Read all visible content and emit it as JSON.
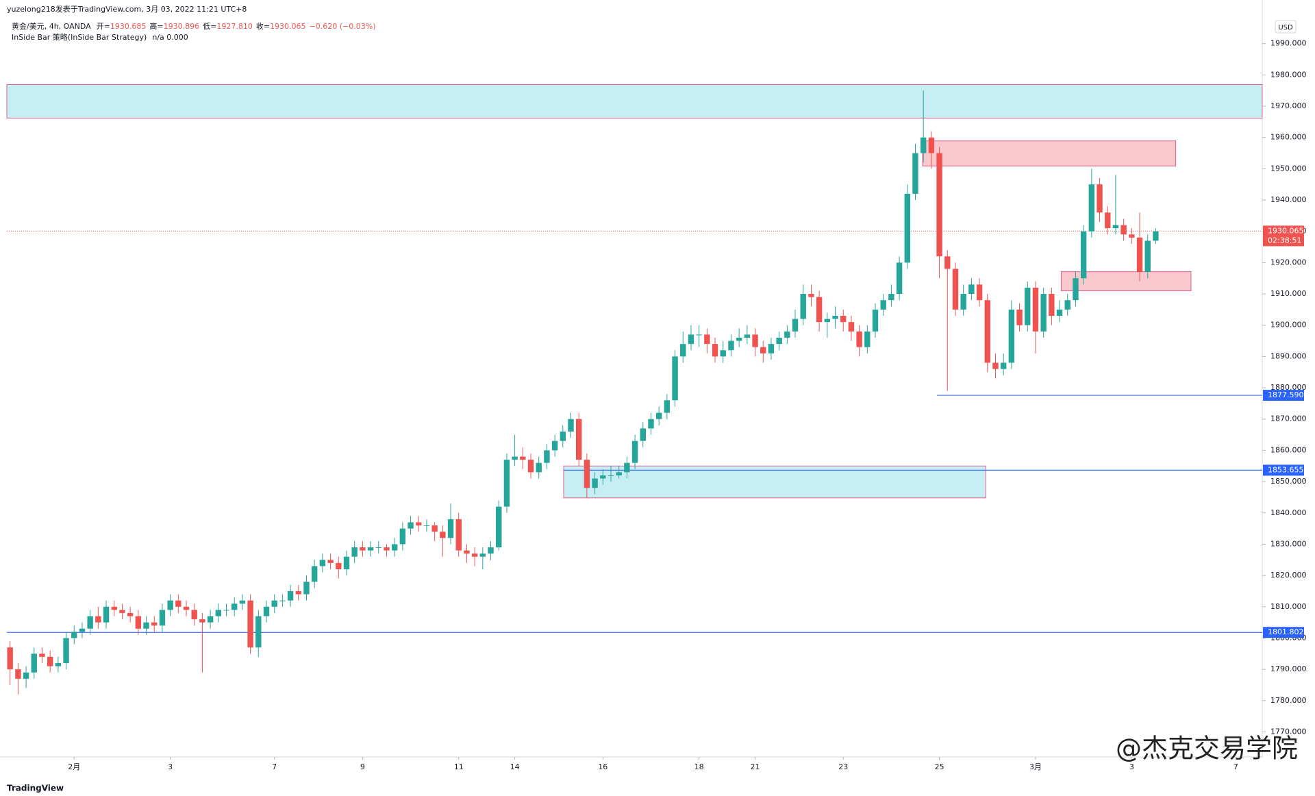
{
  "header": {
    "source": "yuzelong218发表于TradingView.com, 3月 03, 2022 11:21 UTC+8",
    "symbol": "黄金/美元, 4h, OANDA",
    "ohlc": [
      {
        "label": "开=",
        "value": "1930.685"
      },
      {
        "label": "高=",
        "value": "1930.896"
      },
      {
        "label": "低=",
        "value": "1927.810"
      },
      {
        "label": "收=",
        "value": "1930.065"
      }
    ],
    "change": "−0.620 (−0.03%)",
    "indicator": "InSide Bar 策略(InSide Bar Strategy)",
    "indicator_values": "n/a  0.000",
    "brand": "TradingView",
    "watermark": "@杰克交易学院"
  },
  "chart_data": {
    "type": "candlestick",
    "currency": "USD",
    "up_color": "#26a69a",
    "down_color": "#ef5350",
    "xlim": [
      -0.4,
      156.3
    ],
    "xticks": [
      {
        "value": 8,
        "label": "2月"
      },
      {
        "value": 20,
        "label": "3"
      },
      {
        "value": 33,
        "label": "7"
      },
      {
        "value": 44,
        "label": "9"
      },
      {
        "value": 56,
        "label": "11"
      },
      {
        "value": 63,
        "label": "14"
      },
      {
        "value": 74,
        "label": "16"
      },
      {
        "value": 86,
        "label": "18"
      },
      {
        "value": 93,
        "label": "21"
      },
      {
        "value": 104,
        "label": "23"
      },
      {
        "value": 116,
        "label": "25"
      },
      {
        "value": 128,
        "label": "3月"
      },
      {
        "value": 140,
        "label": "3"
      },
      {
        "value": 153,
        "label": "7"
      }
    ],
    "ylim": [
      1762,
      2000
    ],
    "yticks": [
      {
        "value": 1770,
        "label": "1770.000"
      },
      {
        "value": 1780,
        "label": "1780.000"
      },
      {
        "value": 1790,
        "label": "1790.000"
      },
      {
        "value": 1800,
        "label": "1800.000"
      },
      {
        "value": 1810,
        "label": "1810.000"
      },
      {
        "value": 1820,
        "label": "1820.000"
      },
      {
        "value": 1830,
        "label": "1830.000"
      },
      {
        "value": 1840,
        "label": "1840.000"
      },
      {
        "value": 1850,
        "label": "1850.000"
      },
      {
        "value": 1860,
        "label": "1860.000"
      },
      {
        "value": 1870,
        "label": "1870.000"
      },
      {
        "value": 1880,
        "label": "1880.000"
      },
      {
        "value": 1890,
        "label": "1890.000"
      },
      {
        "value": 1900,
        "label": "1900.000"
      },
      {
        "value": 1910,
        "label": "1910.000"
      },
      {
        "value": 1920,
        "label": "1920.000"
      },
      {
        "value": 1930,
        "label": "1930.000"
      },
      {
        "value": 1940,
        "label": "1940.000"
      },
      {
        "value": 1950,
        "label": "1950.000"
      },
      {
        "value": 1960,
        "label": "1960.000"
      },
      {
        "value": 1970,
        "label": "1970.000"
      },
      {
        "value": 1980,
        "label": "1980.000"
      },
      {
        "value": 1990,
        "label": "1990.000"
      }
    ],
    "zones": [
      {
        "low": 1966.2,
        "high": 1976.9,
        "color": "#c8eef5"
      },
      {
        "low": 1950.9,
        "high": 1958.9,
        "from": 113.9,
        "to": 145.5,
        "color": "#f8c8cc"
      },
      {
        "low": 1911,
        "high": 1917.1,
        "from": 131.2,
        "to": 147.4,
        "color": "#f8c8cc"
      },
      {
        "low": 1844.8,
        "high": 1855,
        "from": 69.1,
        "to": 121.8,
        "color": "#c8eef5"
      }
    ],
    "levels": [
      {
        "value": 1877.59,
        "label": "1877.590",
        "from": 115.7
      },
      {
        "value": 1853.655,
        "label": "1853.655",
        "from": 69.1
      },
      {
        "value": 1801.802,
        "label": "1801.802"
      }
    ],
    "last_price": {
      "value": 1930.065,
      "label": "1930.065",
      "countdown": "02:38:51"
    },
    "ohlc": [
      [
        1797,
        1799,
        1785,
        1790
      ],
      [
        1790,
        1792,
        1782,
        1787
      ],
      [
        1787,
        1791,
        1784,
        1789
      ],
      [
        1789,
        1797,
        1787,
        1795
      ],
      [
        1795,
        1797,
        1792,
        1794
      ],
      [
        1794,
        1796,
        1789,
        1791
      ],
      [
        1791,
        1794,
        1789,
        1792
      ],
      [
        1792,
        1802,
        1790,
        1800
      ],
      [
        1800,
        1804,
        1798,
        1802
      ],
      [
        1802,
        1805,
        1800,
        1803
      ],
      [
        1803,
        1809,
        1801,
        1807
      ],
      [
        1807,
        1810,
        1803,
        1805
      ],
      [
        1805,
        1812,
        1803,
        1810
      ],
      [
        1810,
        1812,
        1807,
        1809
      ],
      [
        1809,
        1811,
        1806,
        1808
      ],
      [
        1808,
        1810,
        1805,
        1807
      ],
      [
        1807,
        1809,
        1801,
        1803
      ],
      [
        1803,
        1807,
        1801,
        1805
      ],
      [
        1805,
        1807,
        1802,
        1804
      ],
      [
        1804,
        1811,
        1802,
        1809
      ],
      [
        1809,
        1814,
        1807,
        1812
      ],
      [
        1812,
        1814,
        1808,
        1810
      ],
      [
        1810,
        1812,
        1807,
        1809
      ],
      [
        1809,
        1811,
        1804,
        1806
      ],
      [
        1806,
        1808,
        1789,
        1805
      ],
      [
        1805,
        1809,
        1803,
        1807
      ],
      [
        1807,
        1811,
        1805,
        1809
      ],
      [
        1809,
        1811,
        1807,
        1809
      ],
      [
        1809,
        1813,
        1807,
        1811
      ],
      [
        1811,
        1814,
        1809,
        1812
      ],
      [
        1812,
        1814,
        1795,
        1797
      ],
      [
        1797,
        1809,
        1794,
        1807
      ],
      [
        1807,
        1812,
        1805,
        1810
      ],
      [
        1810,
        1814,
        1808,
        1812
      ],
      [
        1812,
        1814,
        1810,
        1812
      ],
      [
        1812,
        1817,
        1810,
        1815
      ],
      [
        1815,
        1817,
        1812,
        1814
      ],
      [
        1814,
        1820,
        1812,
        1818
      ],
      [
        1818,
        1825,
        1816,
        1823
      ],
      [
        1823,
        1827,
        1821,
        1825
      ],
      [
        1825,
        1827,
        1822,
        1824
      ],
      [
        1824,
        1826,
        1819,
        1822
      ],
      [
        1822,
        1828,
        1820,
        1826
      ],
      [
        1826,
        1831,
        1824,
        1829
      ],
      [
        1829,
        1831,
        1826,
        1828
      ],
      [
        1828,
        1831,
        1826,
        1829
      ],
      [
        1829,
        1831,
        1827,
        1829
      ],
      [
        1829,
        1830,
        1826,
        1828
      ],
      [
        1828,
        1832,
        1826,
        1830
      ],
      [
        1830,
        1837,
        1828,
        1835
      ],
      [
        1835,
        1839,
        1833,
        1837
      ],
      [
        1837,
        1839,
        1834,
        1836
      ],
      [
        1836,
        1838,
        1834,
        1836
      ],
      [
        1836,
        1837,
        1831,
        1834
      ],
      [
        1834,
        1836,
        1826,
        1832
      ],
      [
        1832,
        1843,
        1830,
        1838
      ],
      [
        1838,
        1840,
        1826,
        1828
      ],
      [
        1828,
        1830,
        1824,
        1827
      ],
      [
        1827,
        1829,
        1823,
        1826
      ],
      [
        1826,
        1829,
        1822,
        1827
      ],
      [
        1827,
        1831,
        1825,
        1829
      ],
      [
        1829,
        1844,
        1828,
        1842
      ],
      [
        1842,
        1859,
        1840,
        1857
      ],
      [
        1857,
        1865,
        1855,
        1858
      ],
      [
        1858,
        1861,
        1854,
        1857
      ],
      [
        1857,
        1859,
        1851,
        1853
      ],
      [
        1853,
        1858,
        1851,
        1856
      ],
      [
        1856,
        1862,
        1854,
        1860
      ],
      [
        1860,
        1865,
        1858,
        1863
      ],
      [
        1863,
        1868,
        1861,
        1866
      ],
      [
        1866,
        1872,
        1864,
        1870
      ],
      [
        1870,
        1872,
        1855,
        1857
      ],
      [
        1857,
        1859,
        1845,
        1848
      ],
      [
        1848,
        1853,
        1846,
        1851
      ],
      [
        1851,
        1854,
        1849,
        1852
      ],
      [
        1852,
        1855,
        1850,
        1852
      ],
      [
        1852,
        1855,
        1851,
        1853
      ],
      [
        1853,
        1858,
        1851,
        1856
      ],
      [
        1856,
        1865,
        1854,
        1863
      ],
      [
        1863,
        1869,
        1861,
        1867
      ],
      [
        1867,
        1872,
        1865,
        1870
      ],
      [
        1870,
        1874,
        1868,
        1872
      ],
      [
        1872,
        1878,
        1870,
        1876
      ],
      [
        1876,
        1892,
        1874,
        1890
      ],
      [
        1890,
        1898,
        1888,
        1894
      ],
      [
        1894,
        1900,
        1892,
        1897
      ],
      [
        1897,
        1900,
        1893,
        1897
      ],
      [
        1897,
        1899,
        1891,
        1894
      ],
      [
        1894,
        1896,
        1888,
        1890
      ],
      [
        1890,
        1895,
        1888,
        1892
      ],
      [
        1892,
        1897,
        1890,
        1895
      ],
      [
        1895,
        1899,
        1893,
        1896
      ],
      [
        1896,
        1900,
        1894,
        1897
      ],
      [
        1897,
        1899,
        1890,
        1893
      ],
      [
        1893,
        1895,
        1888,
        1891
      ],
      [
        1891,
        1896,
        1889,
        1894
      ],
      [
        1894,
        1898,
        1892,
        1896
      ],
      [
        1896,
        1900,
        1894,
        1898
      ],
      [
        1898,
        1905,
        1896,
        1902
      ],
      [
        1902,
        1913,
        1900,
        1910
      ],
      [
        1910,
        1913,
        1906,
        1909
      ],
      [
        1909,
        1911,
        1898,
        1901
      ],
      [
        1901,
        1904,
        1896,
        1902
      ],
      [
        1902,
        1906,
        1899,
        1903
      ],
      [
        1903,
        1905,
        1898,
        1901
      ],
      [
        1901,
        1903,
        1895,
        1898
      ],
      [
        1898,
        1900,
        1890,
        1893
      ],
      [
        1893,
        1900,
        1891,
        1898
      ],
      [
        1898,
        1907,
        1896,
        1905
      ],
      [
        1905,
        1910,
        1903,
        1908
      ],
      [
        1908,
        1913,
        1906,
        1910
      ],
      [
        1910,
        1922,
        1908,
        1920
      ],
      [
        1920,
        1945,
        1918,
        1942
      ],
      [
        1942,
        1958,
        1940,
        1955
      ],
      [
        1955,
        1975,
        1952,
        1960
      ],
      [
        1960,
        1962,
        1950,
        1955
      ],
      [
        1955,
        1957,
        1915,
        1922
      ],
      [
        1922,
        1924,
        1879,
        1918
      ],
      [
        1918,
        1920,
        1903,
        1905
      ],
      [
        1905,
        1913,
        1903,
        1910
      ],
      [
        1910,
        1915,
        1908,
        1913
      ],
      [
        1913,
        1915,
        1906,
        1908
      ],
      [
        1908,
        1910,
        1885,
        1888
      ],
      [
        1888,
        1891,
        1883,
        1886
      ],
      [
        1886,
        1891,
        1884,
        1888
      ],
      [
        1888,
        1908,
        1886,
        1905
      ],
      [
        1905,
        1907,
        1898,
        1900
      ],
      [
        1900,
        1914,
        1898,
        1912
      ],
      [
        1912,
        1914,
        1891,
        1898
      ],
      [
        1898,
        1912,
        1896,
        1910
      ],
      [
        1910,
        1912,
        1900,
        1903
      ],
      [
        1903,
        1908,
        1901,
        1905
      ],
      [
        1905,
        1910,
        1903,
        1908
      ],
      [
        1908,
        1917,
        1906,
        1915
      ],
      [
        1915,
        1932,
        1913,
        1930
      ],
      [
        1930,
        1950,
        1928,
        1945
      ],
      [
        1945,
        1947,
        1933,
        1936
      ],
      [
        1936,
        1938,
        1929,
        1931
      ],
      [
        1931,
        1948,
        1929,
        1932
      ],
      [
        1932,
        1934,
        1927,
        1929
      ],
      [
        1929,
        1931,
        1926,
        1928
      ],
      [
        1928,
        1936,
        1914,
        1917
      ],
      [
        1917,
        1929,
        1915,
        1927
      ],
      [
        1927,
        1931,
        1926,
        1930
      ]
    ]
  }
}
